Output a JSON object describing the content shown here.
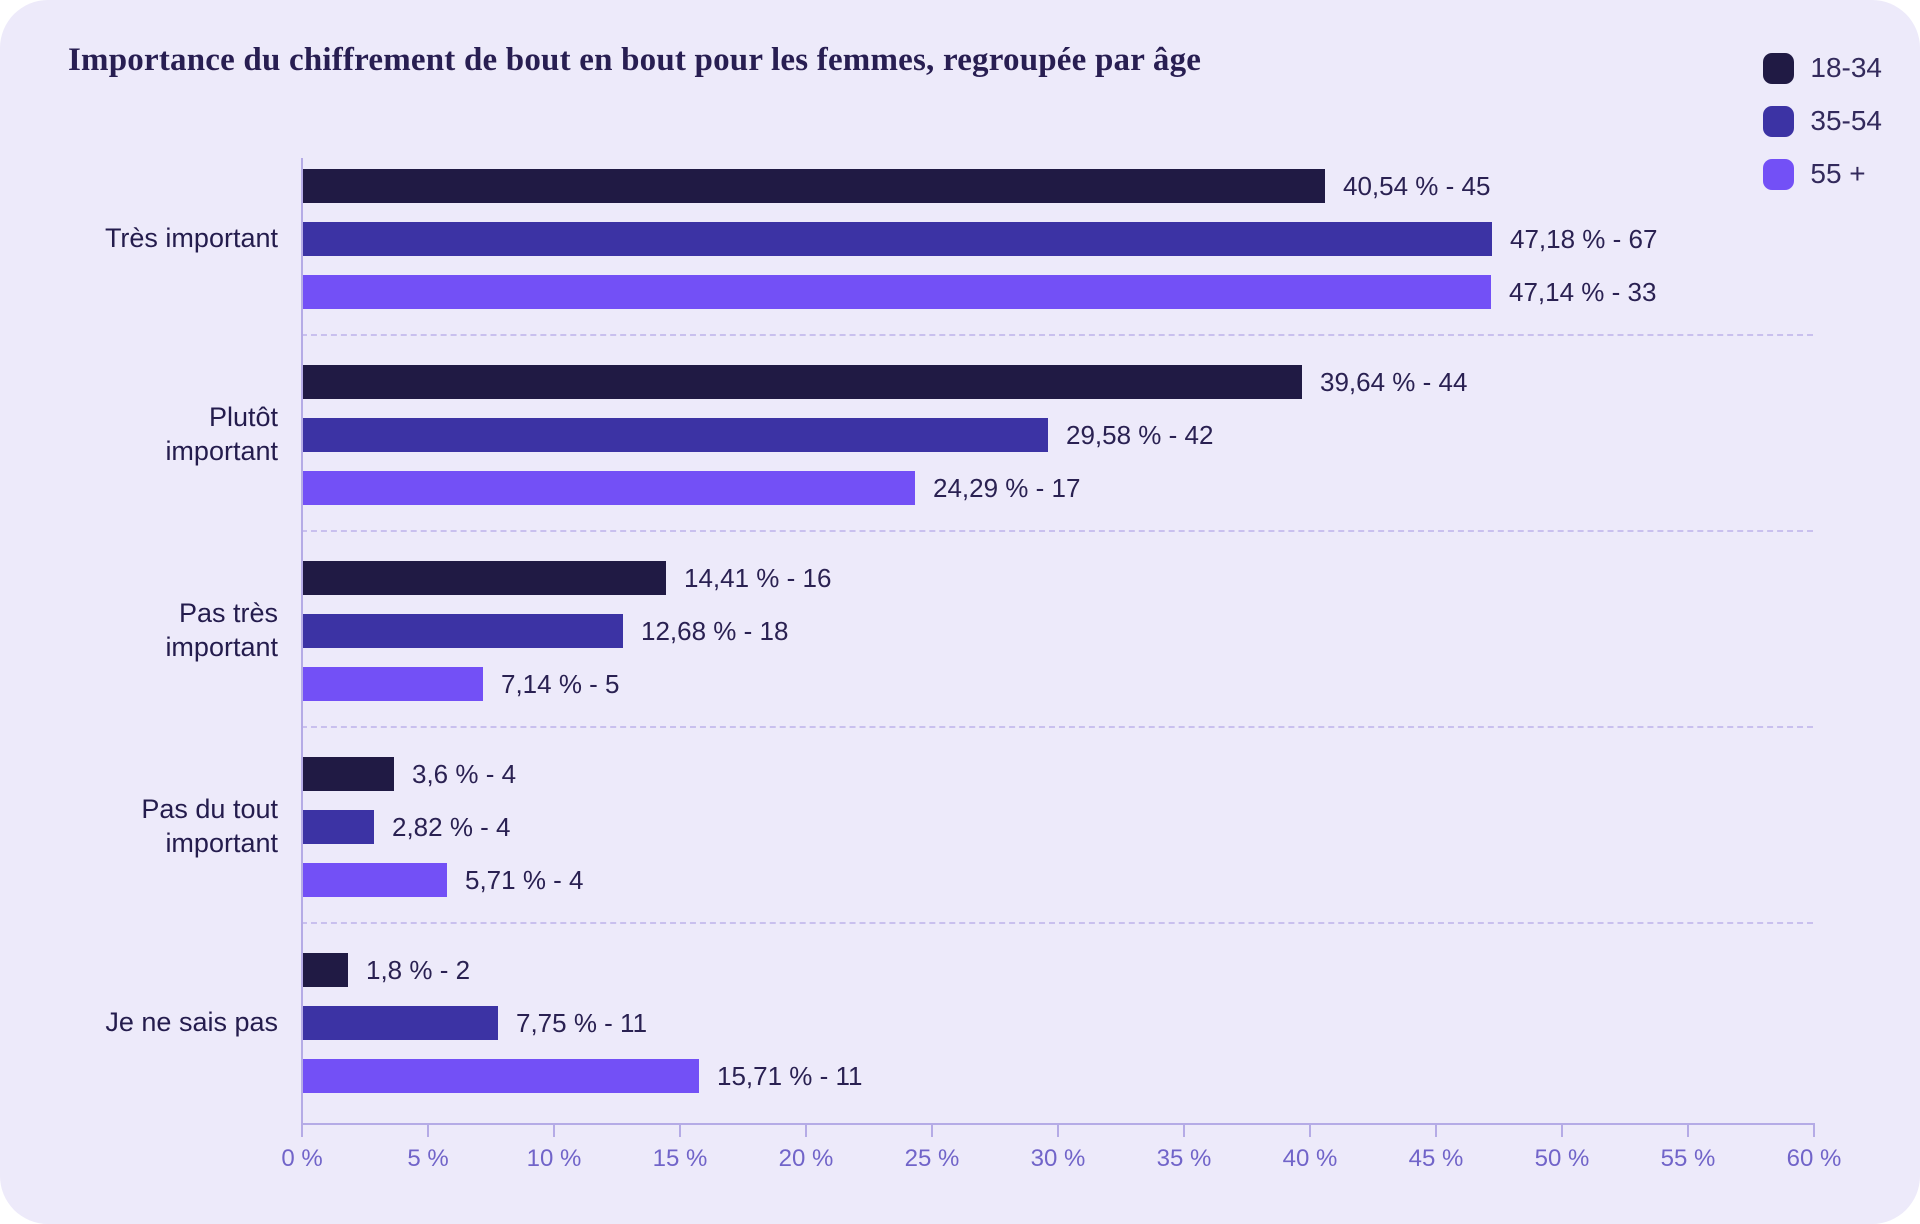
{
  "page": {
    "background": "#ffffff",
    "card_background": "#edeafa"
  },
  "chart_data": {
    "type": "bar",
    "orientation": "horizontal",
    "grouped": true,
    "title": "Importance du chiffrement de bout en bout pour les femmes, regroupée par âge",
    "categories": [
      "Très important",
      "Plutôt\nimportant",
      "Pas très\nimportant",
      "Pas du tout\nimportant",
      "Je ne sais pas"
    ],
    "series": [
      {
        "name": "18-34",
        "color": "#201a44",
        "values": [
          40.54,
          39.64,
          14.41,
          3.6,
          1.8
        ],
        "counts": [
          45,
          44,
          16,
          4,
          2
        ],
        "labels": [
          "40,54 % - 45",
          "39,64 % - 44",
          "14,41 % - 16",
          "3,6 % - 4",
          "1,8 % - 2"
        ]
      },
      {
        "name": "35-54",
        "color": "#3c33a4",
        "values": [
          47.18,
          29.58,
          12.68,
          2.82,
          7.75
        ],
        "counts": [
          67,
          42,
          18,
          4,
          11
        ],
        "labels": [
          "47,18 % - 67",
          "29,58 % - 42",
          "12,68 % - 18",
          "2,82 % - 4",
          "7,75 % - 11"
        ]
      },
      {
        "name": "55 +",
        "color": "#7350f6",
        "values": [
          47.14,
          24.29,
          7.14,
          5.71,
          15.71
        ],
        "counts": [
          33,
          17,
          5,
          4,
          11
        ],
        "labels": [
          "47,14 % - 33",
          "24,29 % - 17",
          "7,14 % - 5",
          "5,71 % - 4",
          "15,71 % - 11"
        ]
      }
    ],
    "x_axis": {
      "min": 0,
      "max": 60,
      "tick_step": 5,
      "ticks": [
        "0 %",
        "5 %",
        "10 %",
        "15 %",
        "20 %",
        "25 %",
        "30 %",
        "35 %",
        "40 %",
        "45 %",
        "50 %",
        "55 %",
        "60 %"
      ]
    },
    "legend_position": "top-right",
    "grid": "dashed-horizontal-group-separators"
  },
  "colors": {
    "title_text": "#281e52",
    "value_text": "#2a2152",
    "category_text": "#241c4d",
    "tick_text": "#7164c9",
    "axis_line": "#b5abe6",
    "separator_line": "#c9c0ee"
  }
}
